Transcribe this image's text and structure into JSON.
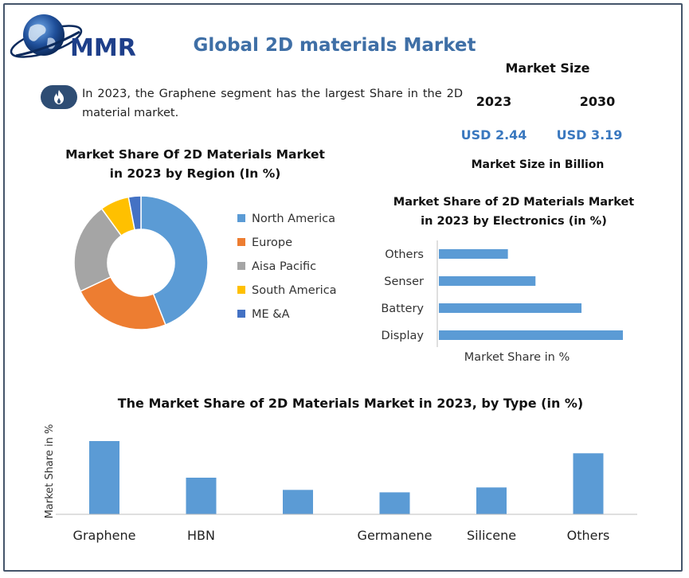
{
  "header": {
    "logo_text": "MMR",
    "title": "Global 2D materials Market"
  },
  "insight": {
    "icon": "flame-icon",
    "text": "In 2023, the Graphene segment has the largest Share in the 2D material market."
  },
  "market_size": {
    "heading": "Market Size",
    "years": [
      "2023",
      "2030"
    ],
    "values": [
      "USD 2.44",
      "USD 3.19"
    ],
    "unit_label": "Market Size in Billion"
  },
  "colors": {
    "accent": "#3f6fa6",
    "bar": "#5b9bd5",
    "frame": "#44546a"
  },
  "chart_data": [
    {
      "type": "pie",
      "donut": true,
      "title": "Market Share Of 2D Materials Market in 2023 by Region (In %)",
      "title_lines": [
        "Market Share Of 2D Materials Market",
        "in 2023 by Region (In %)"
      ],
      "categories": [
        "North America",
        "Europe",
        "Aisa Pacific",
        "South America",
        "ME &A"
      ],
      "values": [
        44,
        24,
        22,
        7,
        3
      ],
      "colors": [
        "#5b9bd5",
        "#ed7d31",
        "#a5a5a5",
        "#ffc000",
        "#4472c4"
      ],
      "legend_position": "right"
    },
    {
      "type": "bar",
      "orientation": "horizontal",
      "title": "Market Share of 2D Materials Market in 2023 by Electronics (in %)",
      "title_lines": [
        "Market Share of 2D Materials  Market",
        "in 2023  by Electronics  (in %)"
      ],
      "categories": [
        "Others",
        "Senser",
        "Battery",
        "Display"
      ],
      "values": [
        15,
        21,
        31,
        40
      ],
      "xlabel": "Market Share in %",
      "xlim": [
        0,
        40
      ],
      "grid": false
    },
    {
      "type": "bar",
      "orientation": "vertical",
      "title": "The Market Share of 2D Materials Market in 2023, by Type (in %)",
      "categories": [
        "Graphene",
        "HBN",
        "",
        "Germanene",
        "Silicene",
        "Others"
      ],
      "values": [
        30,
        15,
        10,
        9,
        11,
        25
      ],
      "ylabel": "Market Share in %",
      "ylim": [
        0,
        30
      ],
      "grid": false
    }
  ]
}
